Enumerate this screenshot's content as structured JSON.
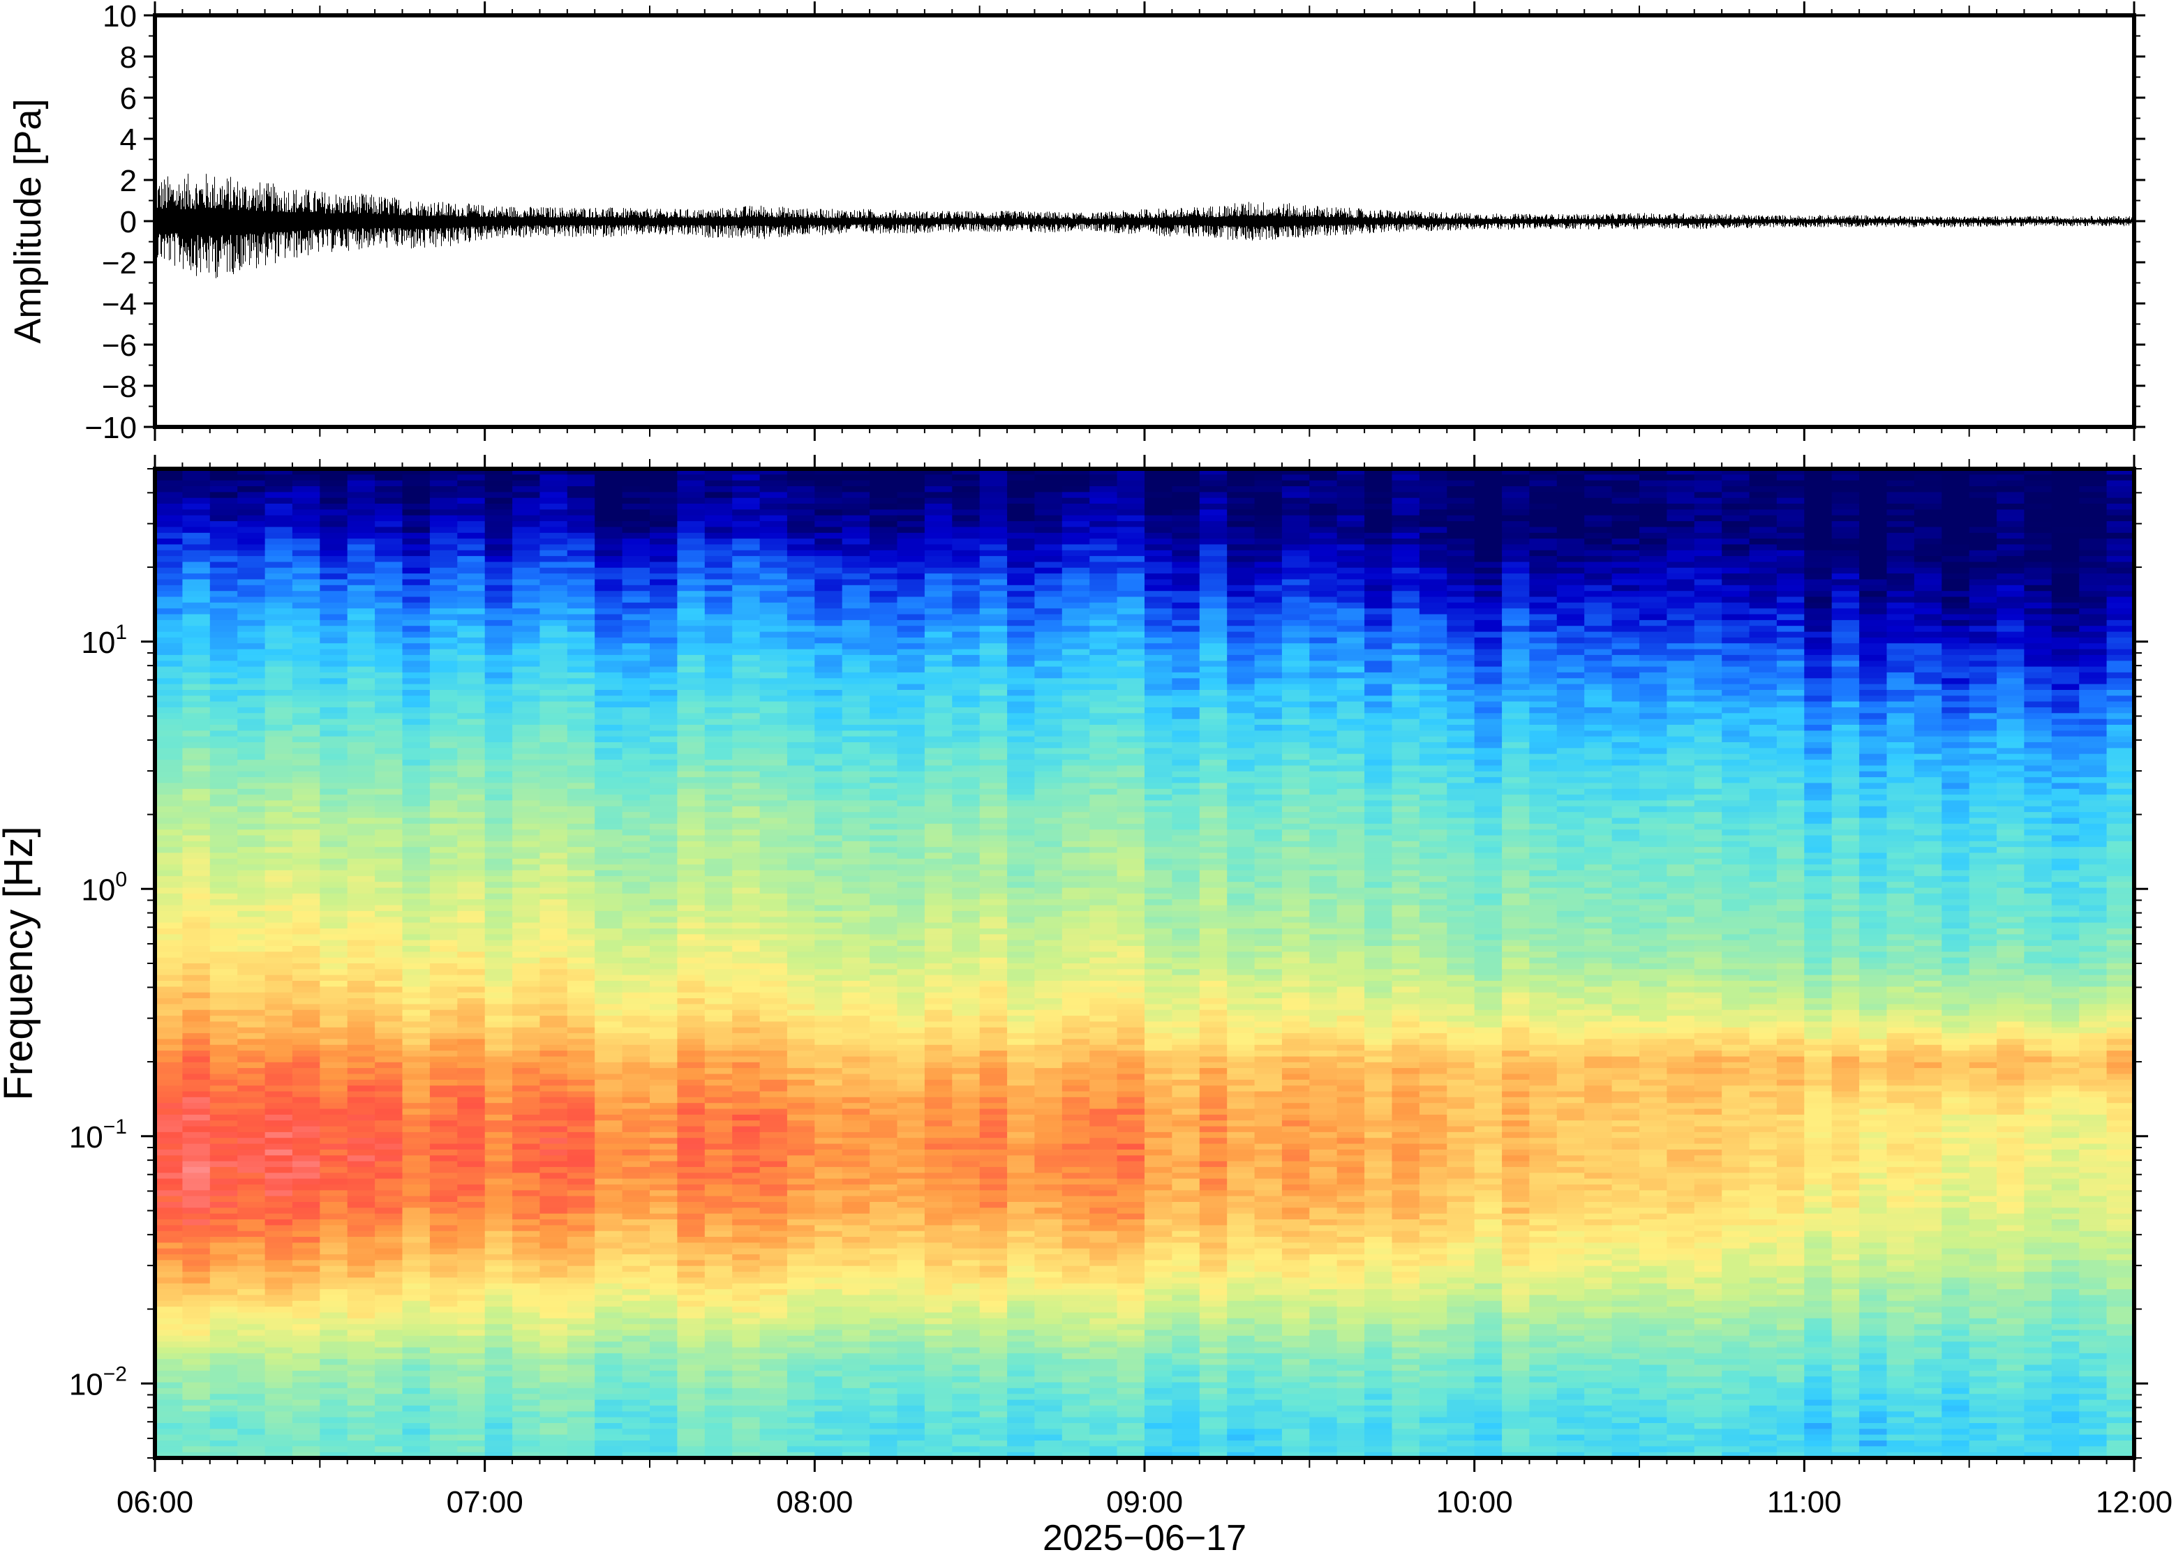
{
  "figure": {
    "date_label": "2025−06−17",
    "time_ticks": [
      "06:00",
      "07:00",
      "08:00",
      "09:00",
      "10:00",
      "11:00",
      "12:00"
    ]
  },
  "chart_data": [
    {
      "type": "line",
      "panel": "waveform",
      "ylabel": "Amplitude [Pa]",
      "xlim": [
        "06:00",
        "12:00"
      ],
      "ylim": [
        -10,
        10
      ],
      "y_ticks": [
        "10",
        "8",
        "6",
        "4",
        "2",
        "0",
        "−2",
        "−4",
        "−6",
        "−8",
        "−10"
      ],
      "line_color": "#000000",
      "envelope": {
        "x": [
          "06:00",
          "06:10",
          "06:20",
          "06:30",
          "06:40",
          "06:50",
          "07:00",
          "07:10",
          "07:20",
          "07:30",
          "07:40",
          "07:50",
          "08:00",
          "08:10",
          "08:20",
          "08:30",
          "08:40",
          "08:50",
          "09:00",
          "09:10",
          "09:20",
          "09:30",
          "09:40",
          "09:50",
          "10:00",
          "10:10",
          "10:20",
          "10:30",
          "10:40",
          "10:50",
          "11:00",
          "11:10",
          "11:20",
          "11:30",
          "11:40",
          "11:50",
          "12:00"
        ],
        "max": [
          2.2,
          2.4,
          1.9,
          1.5,
          1.3,
          1.0,
          0.8,
          0.7,
          0.7,
          0.6,
          0.6,
          0.8,
          0.6,
          0.6,
          0.5,
          0.5,
          0.5,
          0.4,
          0.6,
          0.7,
          1.0,
          0.8,
          0.6,
          0.5,
          0.4,
          0.35,
          0.35,
          0.4,
          0.4,
          0.3,
          0.3,
          0.3,
          0.25,
          0.25,
          0.25,
          0.25,
          0.25
        ],
        "min": [
          -2.0,
          -2.9,
          -2.2,
          -1.6,
          -1.3,
          -1.5,
          -0.9,
          -0.8,
          -0.8,
          -0.7,
          -0.8,
          -0.9,
          -0.7,
          -0.6,
          -0.6,
          -0.5,
          -0.6,
          -0.5,
          -0.7,
          -0.8,
          -1.0,
          -0.8,
          -0.6,
          -0.5,
          -0.45,
          -0.4,
          -0.4,
          -0.4,
          -0.4,
          -0.35,
          -0.3,
          -0.3,
          -0.3,
          -0.3,
          -0.25,
          -0.25,
          -0.25
        ]
      }
    },
    {
      "type": "heatmap",
      "panel": "spectrogram",
      "ylabel": "Frequency [Hz]",
      "xlabel": "2025−06−17",
      "xlim": [
        "06:00",
        "12:00"
      ],
      "ylim": [
        0.005,
        50
      ],
      "y_scale": "log",
      "y_ticks": [
        {
          "base": "10",
          "exp": "1",
          "value": 10
        },
        {
          "base": "10",
          "exp": "0",
          "value": 1
        },
        {
          "base": "10",
          "exp": "−1",
          "value": 0.1
        },
        {
          "base": "10",
          "exp": "−2",
          "value": 0.01
        }
      ],
      "colormap": [
        "#000066",
        "#0000cc",
        "#1a75ff",
        "#33ccff",
        "#66e6d9",
        "#99ecb3",
        "#ccf28c",
        "#fff080",
        "#ffcc66",
        "#ff9944",
        "#ff5544",
        "#ff9999"
      ],
      "band_freq": [
        50,
        30,
        20,
        12,
        8,
        5,
        3,
        2,
        1.2,
        0.8,
        0.5,
        0.3,
        0.2,
        0.12,
        0.08,
        0.05,
        0.03,
        0.02,
        0.012,
        0.007
      ],
      "band_profiles": {
        "times": [
          "06:00",
          "07:00",
          "08:00",
          "09:00",
          "10:00",
          "11:00",
          "12:00"
        ],
        "levels": [
          [
            0.0,
            0.0,
            0.0,
            0.0,
            0.0,
            0.0,
            0.0
          ],
          [
            0.1,
            0.05,
            0.05,
            0.05,
            0.0,
            0.0,
            0.0
          ],
          [
            0.18,
            0.14,
            0.14,
            0.12,
            0.06,
            0.04,
            0.02
          ],
          [
            0.26,
            0.22,
            0.22,
            0.2,
            0.14,
            0.1,
            0.07
          ],
          [
            0.31,
            0.28,
            0.28,
            0.26,
            0.2,
            0.17,
            0.12
          ],
          [
            0.37,
            0.34,
            0.33,
            0.31,
            0.26,
            0.23,
            0.19
          ],
          [
            0.45,
            0.41,
            0.39,
            0.37,
            0.32,
            0.29,
            0.26
          ],
          [
            0.52,
            0.47,
            0.45,
            0.43,
            0.37,
            0.33,
            0.3
          ],
          [
            0.58,
            0.52,
            0.49,
            0.47,
            0.41,
            0.37,
            0.34
          ],
          [
            0.63,
            0.56,
            0.53,
            0.51,
            0.44,
            0.4,
            0.37
          ],
          [
            0.69,
            0.62,
            0.58,
            0.56,
            0.49,
            0.45,
            0.43
          ],
          [
            0.78,
            0.7,
            0.66,
            0.64,
            0.6,
            0.58,
            0.57
          ],
          [
            0.86,
            0.8,
            0.76,
            0.75,
            0.74,
            0.76,
            0.78
          ],
          [
            0.93,
            0.86,
            0.83,
            0.82,
            0.76,
            0.68,
            0.62
          ],
          [
            0.95,
            0.87,
            0.84,
            0.83,
            0.76,
            0.68,
            0.6
          ],
          [
            0.92,
            0.83,
            0.8,
            0.79,
            0.72,
            0.64,
            0.57
          ],
          [
            0.82,
            0.72,
            0.7,
            0.68,
            0.62,
            0.56,
            0.5
          ],
          [
            0.7,
            0.6,
            0.58,
            0.56,
            0.52,
            0.48,
            0.44
          ],
          [
            0.5,
            0.45,
            0.43,
            0.42,
            0.4,
            0.38,
            0.37
          ],
          [
            0.4,
            0.38,
            0.37,
            0.32,
            0.33,
            0.3,
            0.33
          ]
        ]
      }
    }
  ]
}
